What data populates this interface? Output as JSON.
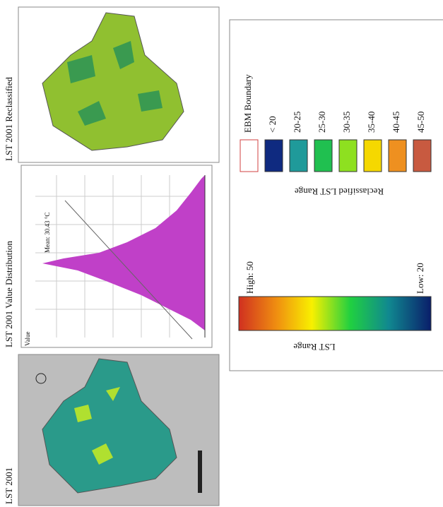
{
  "panels": [
    {
      "title": "LST 2001"
    },
    {
      "title": "LST 2001 Value Distribution",
      "axis_label": "Value",
      "annotation": "Mean: 30.43 °C"
    },
    {
      "title": "LST 2001 Reclassified"
    }
  ],
  "legend": {
    "gradient": {
      "title": "LST Range",
      "high": "High: 50",
      "low": "Low: 20"
    },
    "classes": {
      "title": "Reclassified LST Range",
      "items": [
        {
          "label": "EBM Boundary",
          "color": "#ffffff"
        },
        {
          "label": "< 20",
          "color": "#0f2a80"
        },
        {
          "label": "20-25",
          "color": "#1f9a9a"
        },
        {
          "label": "25-30",
          "color": "#20c050"
        },
        {
          "label": "30-35",
          "color": "#8ee020"
        },
        {
          "label": "35-40",
          "color": "#f5d800"
        },
        {
          "label": "40-45",
          "color": "#ee9020"
        },
        {
          "label": "45-50",
          "color": "#c85a40"
        }
      ]
    }
  }
}
